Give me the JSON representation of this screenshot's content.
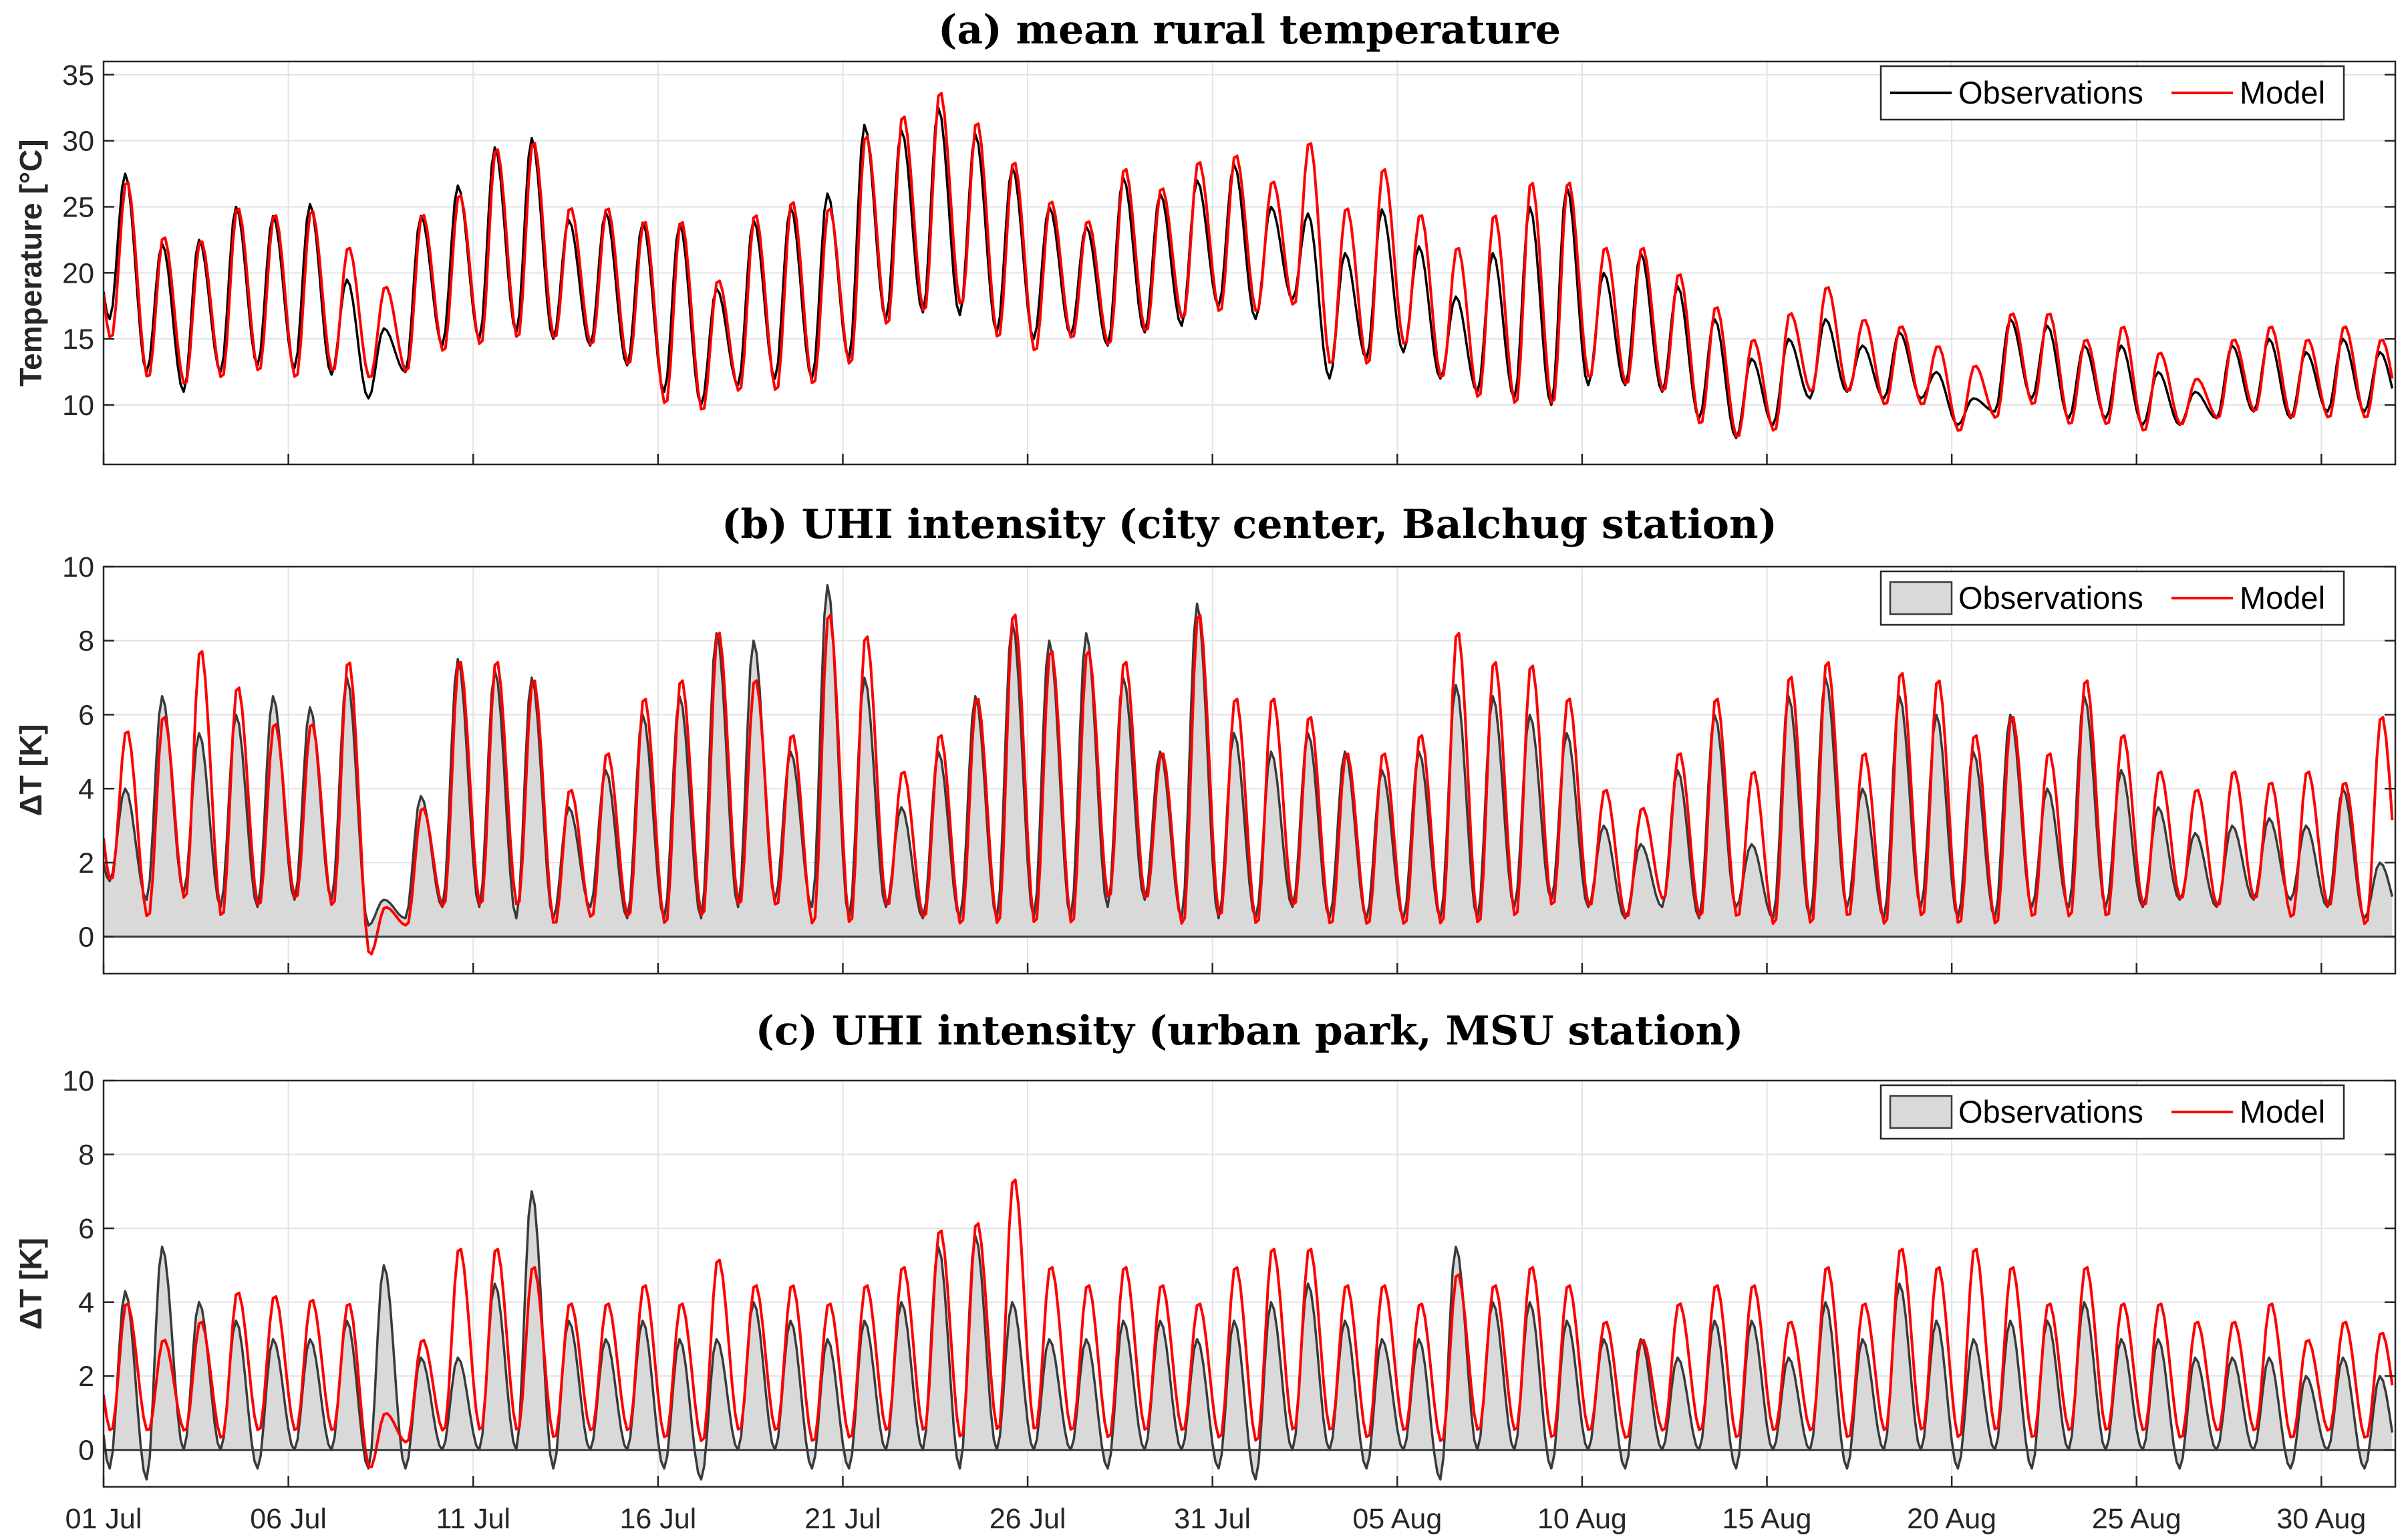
{
  "chart_data": [
    {
      "type": "line",
      "title": "(a) mean rural temperature",
      "ylabel": "Temperature [°C]",
      "ylim": [
        5.5,
        36
      ],
      "yticks": [
        10,
        15,
        20,
        25,
        30,
        35
      ],
      "start_date": "01 Jul",
      "n_days": 62,
      "legend": {
        "location": "top-right",
        "entries": [
          "Observations",
          "Model"
        ]
      },
      "series": [
        {
          "name": "Observations",
          "color": "#000000",
          "style": "line",
          "daily_max": [
            27.5,
            22.2,
            22.5,
            25.0,
            24.3,
            25.2,
            19.5,
            15.8,
            24.3,
            26.6,
            29.5,
            30.2,
            24.0,
            24.6,
            23.8,
            23.7,
            18.8,
            24.0,
            25.0,
            26.0,
            31.2,
            30.8,
            32.5,
            30.5,
            28.0,
            25.0,
            23.5,
            27.2,
            26.0,
            27.0,
            28.2,
            25.0,
            24.5,
            21.5,
            24.8,
            22.0,
            18.2,
            21.5,
            25.0,
            26.5,
            20.0,
            21.5,
            19.0,
            16.5,
            13.5,
            15.0,
            16.5,
            14.5,
            15.5,
            12.5,
            10.5,
            16.5,
            16.0,
            14.5,
            14.5,
            12.5,
            11.0,
            14.5,
            15.0,
            14.0,
            15.0,
            14.0
          ],
          "daily_min": [
            16.5,
            12.5,
            11.0,
            12.5,
            13.0,
            12.8,
            12.3,
            10.5,
            12.5,
            14.5,
            15.0,
            15.5,
            15.0,
            14.5,
            13.0,
            11.0,
            10.0,
            11.5,
            12.0,
            12.0,
            13.5,
            16.5,
            17.0,
            16.8,
            15.5,
            15.0,
            15.3,
            14.5,
            15.5,
            16.0,
            17.5,
            16.5,
            18.0,
            12.0,
            13.5,
            14.0,
            12.0,
            11.0,
            10.5,
            10.0,
            11.5,
            11.5,
            11.0,
            9.0,
            7.5,
            8.5,
            10.5,
            11.0,
            10.5,
            10.5,
            8.5,
            9.5,
            10.5,
            9.0,
            9.0,
            8.5,
            8.5,
            9.0,
            9.5,
            9.0,
            9.5,
            9.5
          ]
        },
        {
          "name": "Model",
          "color": "#ff0000",
          "style": "line",
          "daily_max": [
            27.0,
            22.8,
            22.5,
            25.0,
            24.5,
            24.8,
            22.0,
            19.0,
            24.5,
            26.0,
            29.5,
            30.0,
            25.0,
            25.0,
            24.0,
            24.0,
            19.5,
            24.5,
            25.5,
            25.0,
            30.5,
            32.0,
            33.8,
            31.5,
            28.5,
            25.5,
            24.0,
            28.0,
            26.5,
            28.5,
            29.0,
            27.0,
            30.0,
            25.0,
            28.0,
            24.5,
            22.0,
            24.5,
            27.0,
            27.0,
            22.0,
            22.0,
            20.0,
            17.5,
            15.0,
            17.0,
            19.0,
            16.5,
            16.0,
            14.5,
            13.0,
            17.0,
            17.0,
            15.0,
            16.0,
            14.0,
            12.0,
            15.0,
            16.0,
            15.0,
            16.0,
            15.0
          ],
          "daily_min": [
            15.0,
            12.0,
            11.5,
            12.0,
            12.5,
            12.0,
            12.5,
            12.0,
            12.5,
            14.0,
            14.5,
            15.0,
            15.0,
            14.5,
            13.0,
            10.0,
            9.5,
            11.0,
            11.0,
            11.5,
            13.0,
            16.0,
            17.0,
            17.5,
            15.0,
            14.0,
            15.0,
            14.5,
            15.5,
            16.5,
            17.0,
            17.0,
            17.5,
            13.0,
            13.0,
            14.5,
            12.0,
            10.5,
            10.0,
            10.0,
            12.0,
            11.5,
            11.0,
            8.5,
            7.5,
            8.0,
            11.0,
            11.0,
            10.0,
            10.0,
            8.0,
            9.0,
            10.0,
            8.5,
            8.5,
            8.0,
            8.5,
            9.0,
            9.5,
            9.0,
            9.0,
            9.0
          ]
        }
      ]
    },
    {
      "type": "area",
      "title": "(b) UHI intensity (city center, Balchug station)",
      "ylabel": "ΔT [K]",
      "ylim": [
        -1,
        10
      ],
      "yticks": [
        0,
        2,
        4,
        6,
        8,
        10
      ],
      "start_date": "01 Jul",
      "n_days": 62,
      "legend": {
        "location": "top-right",
        "entries": [
          "Observations",
          "Model"
        ]
      },
      "series": [
        {
          "name": "Observations",
          "color": "#3a3a3a",
          "fill": "#d9d9d9",
          "style": "area",
          "daily_peak": [
            4.0,
            6.5,
            5.5,
            6.0,
            6.5,
            6.2,
            7.0,
            1.0,
            3.8,
            7.5,
            7.2,
            7.0,
            3.5,
            4.5,
            6.0,
            6.5,
            8.2,
            8.0,
            5.0,
            9.5,
            7.0,
            3.5,
            5.0,
            6.5,
            8.5,
            8.0,
            8.2,
            7.0,
            5.0,
            9.0,
            5.5,
            5.0,
            5.5,
            5.0,
            4.5,
            5.0,
            6.8,
            6.5,
            6.0,
            5.5,
            3.0,
            2.5,
            4.5,
            6.0,
            2.5,
            6.5,
            7.0,
            4.0,
            6.5,
            6.0,
            5.0,
            6.0,
            4.0,
            6.5,
            4.5,
            3.5,
            2.8,
            3.0,
            3.2,
            3.0,
            4.0,
            2.0
          ],
          "daily_low": [
            1.5,
            1.0,
            1.2,
            0.8,
            0.8,
            1.0,
            1.0,
            0.3,
            0.5,
            0.8,
            0.8,
            0.5,
            0.5,
            0.8,
            0.5,
            0.5,
            0.5,
            0.8,
            1.0,
            0.8,
            0.5,
            0.8,
            0.5,
            0.5,
            0.5,
            0.5,
            0.5,
            0.8,
            1.0,
            0.5,
            0.5,
            0.5,
            0.8,
            0.5,
            0.5,
            0.5,
            0.5,
            0.5,
            0.8,
            1.0,
            0.8,
            0.5,
            0.8,
            0.5,
            0.8,
            0.5,
            0.5,
            0.8,
            0.5,
            0.8,
            0.5,
            0.5,
            0.8,
            0.8,
            0.8,
            0.8,
            1.0,
            0.8,
            1.0,
            1.0,
            0.8,
            0.5
          ]
        },
        {
          "name": "Model",
          "color": "#ff0000",
          "style": "line",
          "daily_peak": [
            5.6,
            6.0,
            7.8,
            6.8,
            5.8,
            5.8,
            7.5,
            0.8,
            3.5,
            7.5,
            7.5,
            7.0,
            4.0,
            5.0,
            6.5,
            7.0,
            8.3,
            7.0,
            5.5,
            8.8,
            8.2,
            4.5,
            5.5,
            6.5,
            8.8,
            7.8,
            7.8,
            7.5,
            5.0,
            8.8,
            6.5,
            6.5,
            6.0,
            5.0,
            5.0,
            5.5,
            8.3,
            7.5,
            7.4,
            6.5,
            4.0,
            3.5,
            5.0,
            6.5,
            4.5,
            7.1,
            7.5,
            5.0,
            7.2,
            7.0,
            5.5,
            6.0,
            5.0,
            7.0,
            5.5,
            4.5,
            4.0,
            4.5,
            4.2,
            4.5,
            4.2,
            6.0
          ],
          "daily_low": [
            1.5,
            0.5,
            1.0,
            0.5,
            0.8,
            1.0,
            0.8,
            -0.5,
            0.3,
            0.8,
            0.8,
            0.8,
            0.3,
            0.5,
            0.5,
            0.3,
            0.5,
            0.8,
            0.8,
            0.3,
            0.3,
            0.8,
            0.5,
            0.3,
            0.3,
            0.3,
            0.3,
            1.0,
            1.0,
            0.3,
            0.5,
            0.3,
            0.8,
            0.3,
            0.3,
            0.3,
            0.3,
            0.3,
            0.5,
            0.8,
            0.8,
            0.5,
            1.0,
            0.5,
            0.5,
            0.3,
            0.3,
            0.5,
            0.3,
            0.5,
            0.3,
            0.3,
            0.5,
            0.5,
            0.5,
            0.8,
            1.0,
            0.8,
            1.0,
            0.5,
            0.8,
            0.3
          ]
        }
      ]
    },
    {
      "type": "area",
      "title": "(c) UHI intensity (urban park, MSU station)",
      "ylabel": "ΔT [K]",
      "ylim": [
        -1,
        10
      ],
      "yticks": [
        0,
        2,
        4,
        6,
        8,
        10
      ],
      "xticks": [
        "01 Jul",
        "06 Jul",
        "11 Jul",
        "16 Jul",
        "21 Jul",
        "26 Jul",
        "31 Jul",
        "05 Aug",
        "10 Aug",
        "15 Aug",
        "20 Aug",
        "25 Aug",
        "30 Aug"
      ],
      "start_date": "01 Jul",
      "n_days": 62,
      "legend": {
        "location": "top-right",
        "entries": [
          "Observations",
          "Model"
        ]
      },
      "series": [
        {
          "name": "Observations",
          "color": "#3a3a3a",
          "fill": "#d9d9d9",
          "style": "area",
          "daily_peak": [
            4.3,
            5.5,
            4.0,
            3.5,
            3.0,
            3.0,
            3.5,
            5.0,
            2.5,
            2.5,
            4.5,
            7.0,
            3.5,
            3.0,
            3.5,
            3.0,
            3.0,
            4.0,
            3.5,
            3.0,
            3.5,
            4.0,
            5.5,
            5.8,
            4.0,
            3.0,
            3.0,
            3.5,
            3.5,
            3.0,
            3.5,
            4.0,
            4.5,
            3.5,
            3.0,
            3.0,
            5.5,
            4.0,
            4.0,
            3.5,
            3.0,
            3.0,
            2.5,
            3.5,
            3.5,
            2.5,
            4.0,
            3.0,
            4.5,
            3.5,
            3.0,
            3.5,
            3.5,
            4.0,
            3.0,
            3.0,
            2.5,
            2.5,
            2.5,
            2.0,
            2.5,
            2.0
          ],
          "daily_low": [
            -0.5,
            -0.8,
            0.0,
            0.0,
            -0.5,
            0.0,
            0.0,
            -0.5,
            -0.5,
            0.0,
            0.0,
            0.0,
            -0.5,
            0.0,
            0.0,
            -0.5,
            -0.8,
            0.0,
            0.0,
            -0.5,
            -0.5,
            0.0,
            0.0,
            -0.5,
            0.0,
            0.0,
            0.0,
            -0.5,
            0.0,
            0.0,
            -0.5,
            -0.8,
            0.0,
            0.0,
            -0.5,
            0.0,
            -0.8,
            0.0,
            0.0,
            -0.5,
            0.0,
            -0.5,
            0.0,
            0.0,
            -0.5,
            0.0,
            0.0,
            -0.5,
            0.0,
            0.0,
            -0.5,
            0.0,
            -0.5,
            0.0,
            0.0,
            0.0,
            -0.5,
            0.0,
            0.0,
            -0.5,
            0.0,
            -0.5
          ]
        },
        {
          "name": "Model",
          "color": "#ff0000",
          "style": "line",
          "daily_peak": [
            4.0,
            3.0,
            3.5,
            4.3,
            4.2,
            4.1,
            4.0,
            1.0,
            3.0,
            5.5,
            5.5,
            5.0,
            4.0,
            4.0,
            4.5,
            4.0,
            5.2,
            4.5,
            4.5,
            4.0,
            4.5,
            5.0,
            6.0,
            6.2,
            7.4,
            5.0,
            4.5,
            5.0,
            4.5,
            4.0,
            5.0,
            5.5,
            5.5,
            4.5,
            4.5,
            4.0,
            4.8,
            4.5,
            5.0,
            4.5,
            3.5,
            3.0,
            4.0,
            4.5,
            4.5,
            3.5,
            5.0,
            4.0,
            5.5,
            5.0,
            5.5,
            5.0,
            4.0,
            5.0,
            4.0,
            4.0,
            3.5,
            3.5,
            4.0,
            3.0,
            3.5,
            3.2
          ],
          "daily_low": [
            0.5,
            0.5,
            0.5,
            0.3,
            0.5,
            0.5,
            0.5,
            -0.5,
            0.2,
            0.5,
            0.5,
            0.5,
            0.3,
            0.5,
            0.5,
            0.3,
            0.2,
            0.5,
            0.5,
            0.2,
            0.3,
            0.5,
            0.5,
            0.3,
            0.5,
            0.5,
            0.5,
            0.3,
            0.5,
            0.5,
            0.3,
            0.2,
            0.5,
            0.5,
            0.3,
            0.5,
            0.2,
            0.5,
            0.5,
            0.3,
            0.5,
            0.3,
            0.5,
            0.5,
            0.3,
            0.5,
            0.5,
            0.3,
            0.5,
            0.5,
            0.3,
            0.5,
            0.3,
            0.5,
            0.5,
            0.5,
            0.3,
            0.5,
            0.5,
            0.3,
            0.5,
            0.3
          ]
        }
      ]
    }
  ]
}
